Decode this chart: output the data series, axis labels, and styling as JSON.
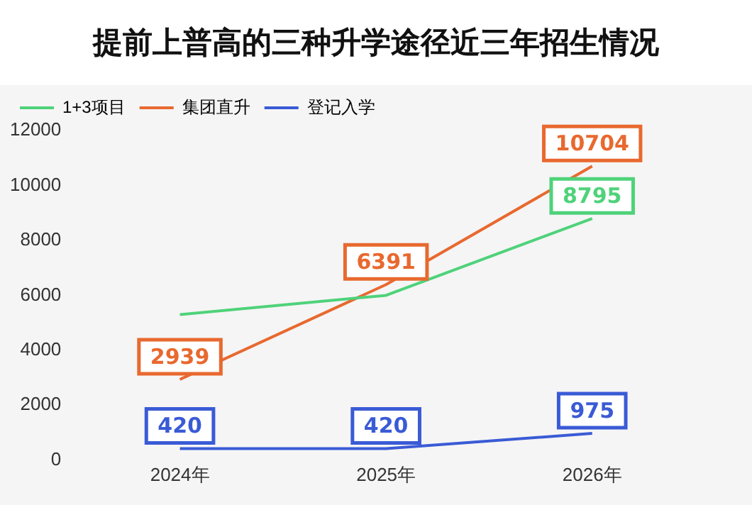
{
  "chart_data": {
    "type": "line",
    "title": "提前上普高的三种升学途径近三年招生情况",
    "categories": [
      "2024年",
      "2025年",
      "2026年"
    ],
    "ylim": [
      0,
      12000
    ],
    "yticks": [
      0,
      2000,
      4000,
      6000,
      8000,
      10000,
      12000
    ],
    "grid": false,
    "legend": "top left",
    "marker": "none",
    "series": [
      {
        "name": "1+3项目",
        "color": "#4fd27a",
        "values": [
          5300,
          6000,
          8795
        ],
        "value_labels": [
          null,
          null,
          "8795"
        ]
      },
      {
        "name": "集团直升",
        "color": "#e8692f",
        "values": [
          2939,
          6391,
          10704
        ],
        "value_labels": [
          "2939",
          "6391",
          "10704"
        ]
      },
      {
        "name": "登记入学",
        "color": "#3a5bd6",
        "values": [
          420,
          420,
          975
        ],
        "value_labels": [
          "420",
          "420",
          "975"
        ]
      }
    ]
  }
}
